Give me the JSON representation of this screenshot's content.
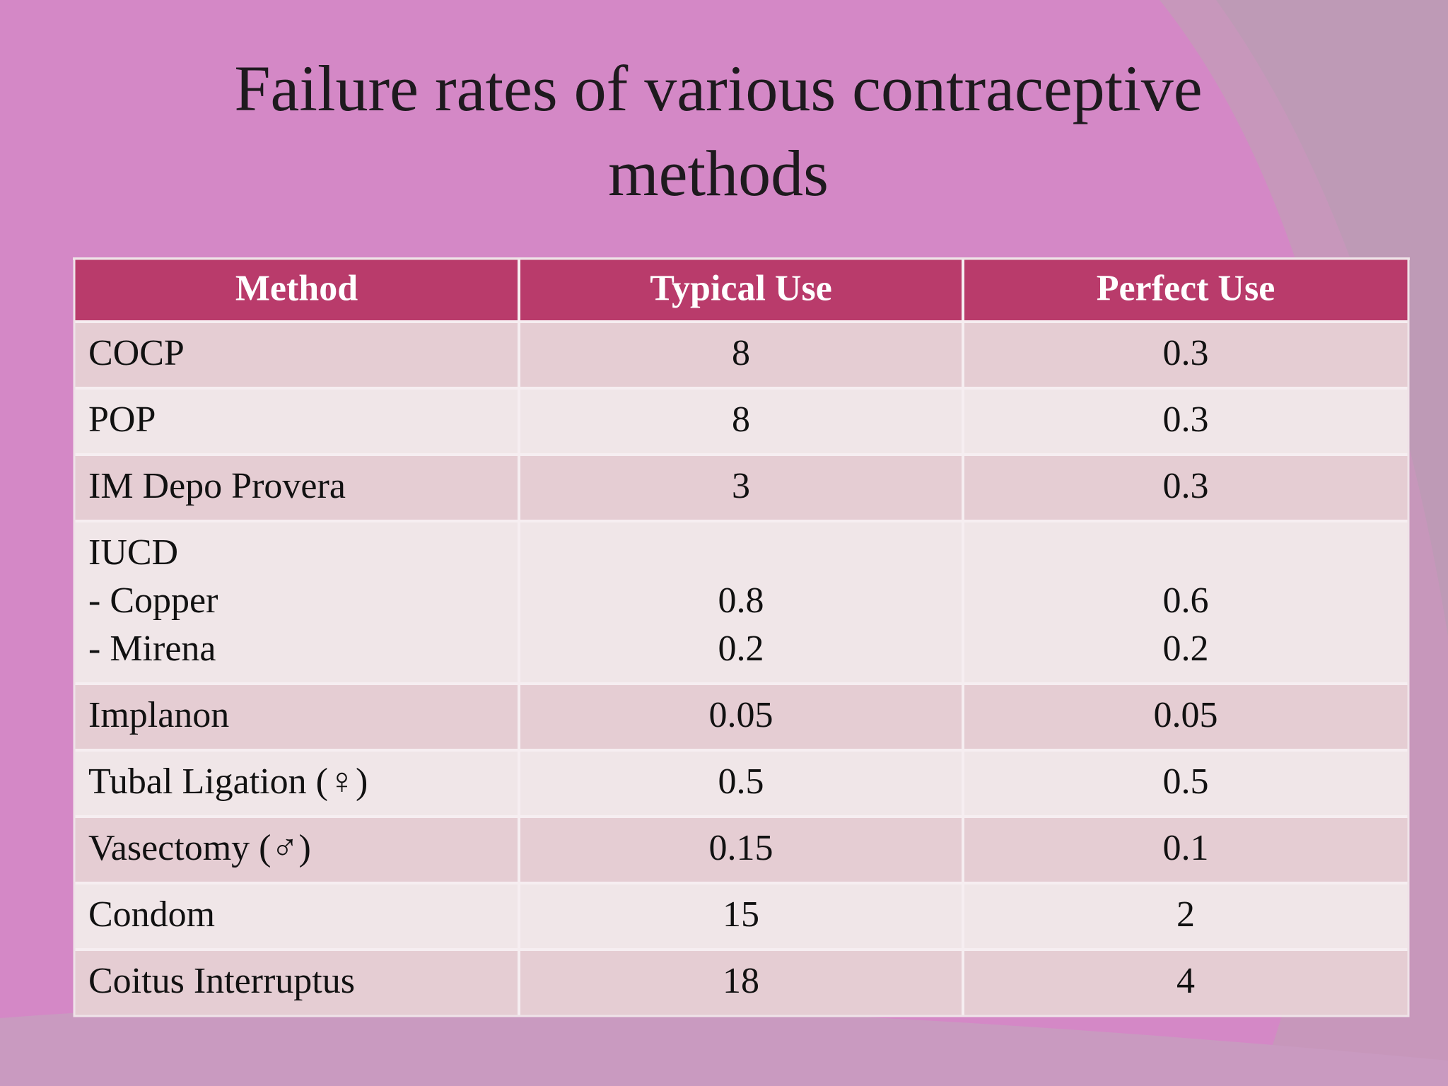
{
  "title": "Failure rates of various contraceptive methods",
  "table": {
    "header": [
      "Method",
      "Typical Use",
      "Perfect Use"
    ],
    "rows": [
      [
        [
          "COCP"
        ],
        [
          "8"
        ],
        [
          "0.3"
        ]
      ],
      [
        [
          "POP"
        ],
        [
          "8"
        ],
        [
          "0.3"
        ]
      ],
      [
        [
          "IM Depo Provera"
        ],
        [
          "3"
        ],
        [
          "0.3"
        ]
      ],
      [
        [
          "IUCD",
          "- Copper",
          "- Mirena"
        ],
        [
          "0.8",
          "0.2"
        ],
        [
          "0.6",
          "0.2"
        ]
      ],
      [
        [
          "Implanon"
        ],
        [
          "0.05"
        ],
        [
          "0.05"
        ]
      ],
      [
        [
          "Tubal Ligation (♀)"
        ],
        [
          "0.5"
        ],
        [
          "0.5"
        ]
      ],
      [
        [
          "Vasectomy (♂)"
        ],
        [
          "0.15"
        ],
        [
          "0.1"
        ]
      ],
      [
        [
          "Condom"
        ],
        [
          "15"
        ],
        [
          "2"
        ]
      ],
      [
        [
          "Coitus Interruptus"
        ],
        [
          "18"
        ],
        [
          "4"
        ]
      ]
    ]
  }
}
